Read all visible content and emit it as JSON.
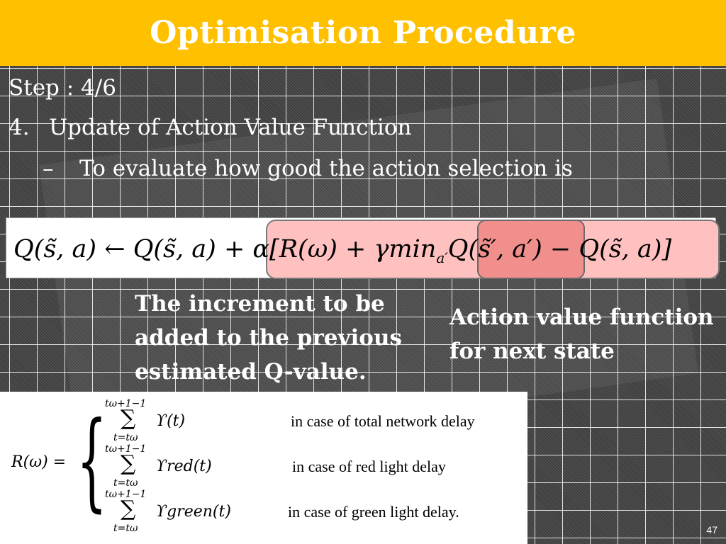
{
  "slide": {
    "title": "Optimisation Procedure",
    "step": "Step : 4/6",
    "item_number": "4.",
    "item_text": "Update of Action Value Function",
    "sub_dash": "–",
    "sub_text": "To evaluate how good the action selection is",
    "page_number": "47"
  },
  "equation": {
    "lhs": "Q(s̃, a)",
    "arrow": "←",
    "rhs_q": "Q(s̃, a)",
    "plus": "+",
    "alpha_open": "α[R(ω) + γmin",
    "min_sub": "a′",
    "next_q": "Q(s̃′, a′)",
    "tail": "− Q(s̃, a)]"
  },
  "annotations": {
    "increment": "The increment to be added to the previous estimated Q-value.",
    "next_state": "Action value function for next state"
  },
  "reward": {
    "lhs": "R(ω) =",
    "cases": [
      {
        "upper": "tω+1−1",
        "lower": "t=tω",
        "term": "ϒ(t)",
        "condition": "in case of total network delay"
      },
      {
        "upper": "tω+1−1",
        "lower": "t=tω",
        "term": "ϒred(t)",
        "condition": "in case of red light delay"
      },
      {
        "upper": "tω+1−1",
        "lower": "t=tω",
        "term": "ϒgreen(t)",
        "condition": "in case of green light delay."
      }
    ]
  },
  "colors": {
    "title_bar": "#ffc000",
    "highlight_increment": "#ffc0c0",
    "highlight_next_q": "#f08f8c"
  }
}
